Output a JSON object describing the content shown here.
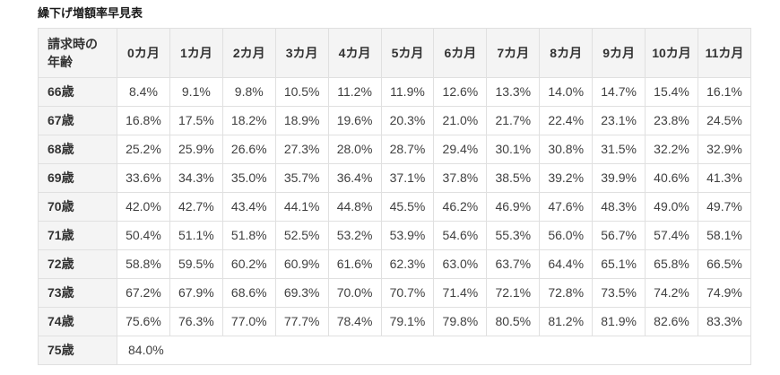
{
  "page": {
    "title": "繰下げ増額率早見表"
  },
  "table": {
    "corner_header": {
      "line1": "請求時の",
      "line2": "年齢"
    },
    "month_headers": [
      "0カ月",
      "1カ月",
      "2カ月",
      "3カ月",
      "4カ月",
      "5カ月",
      "6カ月",
      "7カ月",
      "8カ月",
      "9カ月",
      "10カ月",
      "11カ月"
    ],
    "rows": [
      {
        "age": "66歳",
        "values": [
          "8.4%",
          "9.1%",
          "9.8%",
          "10.5%",
          "11.2%",
          "11.9%",
          "12.6%",
          "13.3%",
          "14.0%",
          "14.7%",
          "15.4%",
          "16.1%"
        ]
      },
      {
        "age": "67歳",
        "values": [
          "16.8%",
          "17.5%",
          "18.2%",
          "18.9%",
          "19.6%",
          "20.3%",
          "21.0%",
          "21.7%",
          "22.4%",
          "23.1%",
          "23.8%",
          "24.5%"
        ]
      },
      {
        "age": "68歳",
        "values": [
          "25.2%",
          "25.9%",
          "26.6%",
          "27.3%",
          "28.0%",
          "28.7%",
          "29.4%",
          "30.1%",
          "30.8%",
          "31.5%",
          "32.2%",
          "32.9%"
        ]
      },
      {
        "age": "69歳",
        "values": [
          "33.6%",
          "34.3%",
          "35.0%",
          "35.7%",
          "36.4%",
          "37.1%",
          "37.8%",
          "38.5%",
          "39.2%",
          "39.9%",
          "40.6%",
          "41.3%"
        ]
      },
      {
        "age": "70歳",
        "values": [
          "42.0%",
          "42.7%",
          "43.4%",
          "44.1%",
          "44.8%",
          "45.5%",
          "46.2%",
          "46.9%",
          "47.6%",
          "48.3%",
          "49.0%",
          "49.7%"
        ]
      },
      {
        "age": "71歳",
        "values": [
          "50.4%",
          "51.1%",
          "51.8%",
          "52.5%",
          "53.2%",
          "53.9%",
          "54.6%",
          "55.3%",
          "56.0%",
          "56.7%",
          "57.4%",
          "58.1%"
        ]
      },
      {
        "age": "72歳",
        "values": [
          "58.8%",
          "59.5%",
          "60.2%",
          "60.9%",
          "61.6%",
          "62.3%",
          "63.0%",
          "63.7%",
          "64.4%",
          "65.1%",
          "65.8%",
          "66.5%"
        ]
      },
      {
        "age": "73歳",
        "values": [
          "67.2%",
          "67.9%",
          "68.6%",
          "69.3%",
          "70.0%",
          "70.7%",
          "71.4%",
          "72.1%",
          "72.8%",
          "73.5%",
          "74.2%",
          "74.9%"
        ]
      },
      {
        "age": "74歳",
        "values": [
          "75.6%",
          "76.3%",
          "77.0%",
          "77.7%",
          "78.4%",
          "79.1%",
          "79.8%",
          "80.5%",
          "81.2%",
          "81.9%",
          "82.6%",
          "83.3%"
        ]
      },
      {
        "age": "75歳",
        "values": [
          "84.0%"
        ],
        "colspan": 12
      }
    ]
  },
  "colors": {
    "header_bg": "#f4f4f4",
    "cell_bg": "#ffffff",
    "border": "#e0e0e0",
    "data_text": "#404040",
    "header_text": "#333333",
    "title_text": "#1a1a1a"
  }
}
